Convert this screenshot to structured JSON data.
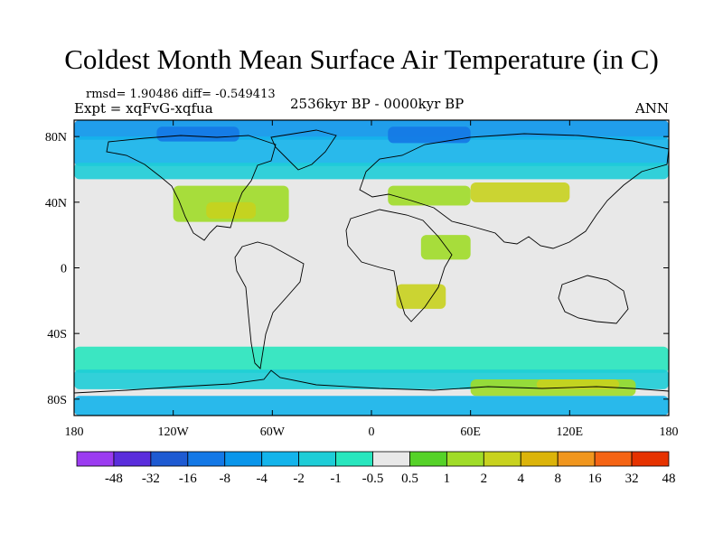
{
  "title": "Coldest Month Mean Surface Air Temperature (in C)",
  "stats": "rmsd= 1.90486 diff= -0.549413",
  "experiment": "Expt = xqFvG-xqfua",
  "period": "2536kyr BP - 0000kyr BP",
  "season": "ANN",
  "chart_data": {
    "type": "heatmap",
    "projection": "cylindrical-equidistant",
    "lon_range": [
      -180,
      180
    ],
    "lat_range": [
      -90,
      90
    ],
    "x_ticks": [
      {
        "value": -180,
        "label": "180"
      },
      {
        "value": -120,
        "label": "120W"
      },
      {
        "value": -60,
        "label": "60W"
      },
      {
        "value": 0,
        "label": "0"
      },
      {
        "value": 60,
        "label": "60E"
      },
      {
        "value": 120,
        "label": "120E"
      },
      {
        "value": 180,
        "label": "180"
      }
    ],
    "y_ticks": [
      {
        "value": 80,
        "label": "80N"
      },
      {
        "value": 40,
        "label": "40N"
      },
      {
        "value": 0,
        "label": "0"
      },
      {
        "value": -40,
        "label": "40S"
      },
      {
        "value": -80,
        "label": "80S"
      }
    ],
    "colorbar": {
      "boundaries": [
        "-48",
        "-32",
        "-16",
        "-8",
        "-4",
        "-2",
        "-1",
        "-0.5",
        "0.5",
        "1",
        "2",
        "4",
        "8",
        "16",
        "32",
        "48"
      ],
      "colors": [
        "#9b3cf0",
        "#5a2ddc",
        "#1e5ad2",
        "#1478e6",
        "#0a96eb",
        "#14b4eb",
        "#1ecdd7",
        "#28e6be",
        "#e8e8e8",
        "#55d228",
        "#a0dc28",
        "#c8d21e",
        "#dcb40a",
        "#f0961e",
        "#f56414",
        "#e63200"
      ]
    },
    "regions": [
      {
        "value_bin": "-8",
        "lon": [
          -180,
          180
        ],
        "lat": [
          78,
          90
        ]
      },
      {
        "value_bin": "-4",
        "lon": [
          -180,
          180
        ],
        "lat": [
          62,
          80
        ]
      },
      {
        "value_bin": "-16",
        "lon": [
          -130,
          -80
        ],
        "lat": [
          77,
          86
        ]
      },
      {
        "value_bin": "-16",
        "lon": [
          10,
          60
        ],
        "lat": [
          76,
          86
        ]
      },
      {
        "value_bin": "-2",
        "lon": [
          -180,
          180
        ],
        "lat": [
          54,
          64
        ]
      },
      {
        "value_bin": "1",
        "lon": [
          -120,
          -50
        ],
        "lat": [
          28,
          50
        ]
      },
      {
        "value_bin": "2",
        "lon": [
          -100,
          -70
        ],
        "lat": [
          30,
          40
        ]
      },
      {
        "value_bin": "1",
        "lon": [
          10,
          60
        ],
        "lat": [
          38,
          50
        ]
      },
      {
        "value_bin": "2",
        "lon": [
          60,
          120
        ],
        "lat": [
          40,
          52
        ]
      },
      {
        "value_bin": "1",
        "lon": [
          30,
          60
        ],
        "lat": [
          5,
          20
        ]
      },
      {
        "value_bin": "2",
        "lon": [
          15,
          45
        ],
        "lat": [
          -25,
          -10
        ]
      },
      {
        "value_bin": "-1",
        "lon": [
          -180,
          180
        ],
        "lat": [
          -64,
          -48
        ]
      },
      {
        "value_bin": "-2",
        "lon": [
          -180,
          180
        ],
        "lat": [
          -74,
          -62
        ]
      },
      {
        "value_bin": "-4",
        "lon": [
          -180,
          180
        ],
        "lat": [
          -90,
          -78
        ]
      },
      {
        "value_bin": "1",
        "lon": [
          60,
          160
        ],
        "lat": [
          -78,
          -68
        ]
      },
      {
        "value_bin": "2",
        "lon": [
          100,
          150
        ],
        "lat": [
          -74,
          -68
        ]
      }
    ]
  }
}
